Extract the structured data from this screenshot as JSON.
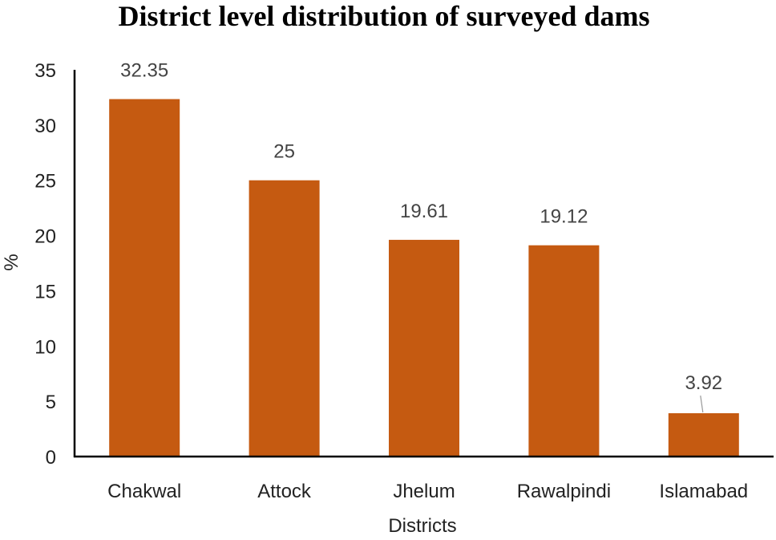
{
  "chart_data": {
    "type": "bar",
    "title": "District level distribution of surveyed dams",
    "xlabel": "Districts",
    "ylabel": "%",
    "categories": [
      "Chakwal",
      "Attock",
      "Jhelum",
      "Rawalpindi",
      "Islamabad"
    ],
    "values": [
      32.35,
      25,
      19.61,
      19.12,
      3.92
    ],
    "data_labels": [
      "32.35",
      "25",
      "19.61",
      "19.12",
      "3.92"
    ],
    "ylim": [
      0,
      35
    ],
    "yticks": [
      0,
      5,
      10,
      15,
      20,
      25,
      30,
      35
    ],
    "grid": false,
    "legend": "none",
    "bar_color": "#C55A11",
    "axis_color": "#000000"
  }
}
